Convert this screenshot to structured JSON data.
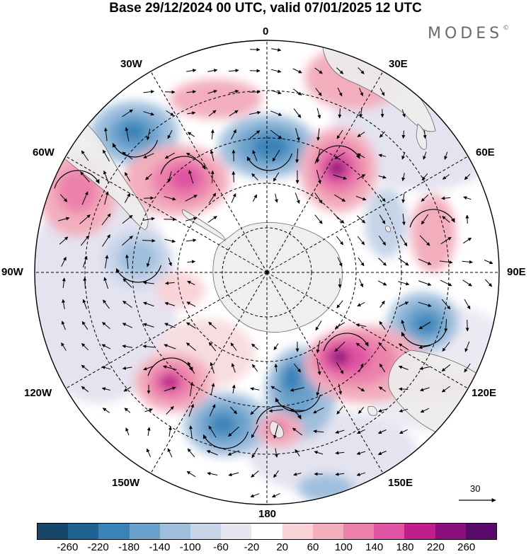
{
  "title": "Base 29/12/2024 00 UTC, valid 07/01/2025 12 UTC",
  "logo": {
    "text": "MODES",
    "mark": "©"
  },
  "map": {
    "projection": "south-polar-stereographic",
    "longitude_labels": [
      "0",
      "30E",
      "60E",
      "90E",
      "120E",
      "150E",
      "180",
      "150W",
      "120W",
      "90W",
      "60W",
      "30W"
    ],
    "reference_vector": "30"
  },
  "legend": {
    "ticks": [
      "-260",
      "-220",
      "-180",
      "-140",
      "-100",
      "-60",
      "-20",
      "20",
      "60",
      "100",
      "140",
      "180",
      "220",
      "260"
    ],
    "colors": [
      "#16476b",
      "#1f6393",
      "#3a83b8",
      "#6aa2cc",
      "#9fbfdd",
      "#c7d4e8",
      "#e6e6f1",
      "#ffffff",
      "#f8d3d7",
      "#f3aebd",
      "#ec82ac",
      "#e052a2",
      "#c01e8d",
      "#8c0f7d",
      "#590a6c"
    ]
  },
  "colors": {
    "land": "#ededed",
    "grid": "#000000"
  }
}
